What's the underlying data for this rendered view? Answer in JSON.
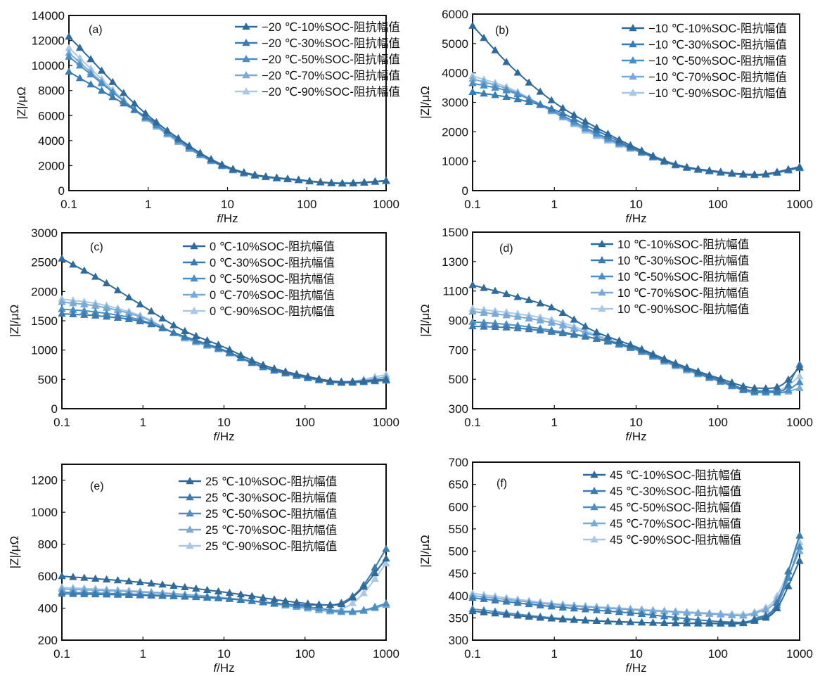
{
  "figure": {
    "description": "Impedance magnitude vs frequency at different temperatures and SOC levels",
    "colors": [
      "#2f6a9a",
      "#3b7bb0",
      "#4a8ec4",
      "#79a9d4",
      "#a9c8e6"
    ]
  },
  "chart_data": [
    {
      "type": "line",
      "panel": "(a)",
      "xlabel_italic": "f",
      "xlabel_unit": "/Hz",
      "ylabel": "|Z|/μΩ",
      "xscale": "log",
      "xlim": [
        0.1,
        1000
      ],
      "ylim": [
        0,
        14000
      ],
      "yticks": [
        0,
        2000,
        4000,
        6000,
        8000,
        10000,
        12000,
        14000
      ],
      "xticks": [
        "0.1",
        "1",
        "10",
        "100",
        "1000"
      ],
      "legend_position": "top-right",
      "x": [
        0.1,
        1,
        10,
        100,
        300,
        1000
      ],
      "series": [
        {
          "name": "−20  ℃-10%SOC-阻抗幅值",
          "values": [
            12300,
            6000,
            1900,
            800,
            600,
            800
          ]
        },
        {
          "name": "−20  ℃-30%SOC-阻抗幅值",
          "values": [
            9500,
            5800,
            1850,
            780,
            580,
            780
          ]
        },
        {
          "name": "−20  ℃-50%SOC-阻抗幅值",
          "values": [
            10700,
            5700,
            1800,
            770,
            570,
            770
          ]
        },
        {
          "name": "−20  ℃-70%SOC-阻抗幅值",
          "values": [
            11000,
            5600,
            1780,
            760,
            560,
            760
          ]
        },
        {
          "name": "−20  ℃-90%SOC-阻抗幅值",
          "values": [
            11400,
            5600,
            1780,
            760,
            560,
            800
          ]
        }
      ]
    },
    {
      "type": "line",
      "panel": "(b)",
      "xlabel_italic": "f",
      "xlabel_unit": "/Hz",
      "ylabel": "|Z|/μΩ",
      "xscale": "log",
      "xlim": [
        0.1,
        1000
      ],
      "ylim": [
        0,
        6000
      ],
      "yticks": [
        0,
        1000,
        2000,
        3000,
        4000,
        5000,
        6000
      ],
      "xticks": [
        "0.1",
        "1",
        "10",
        "100",
        "1000"
      ],
      "legend_position": "top-right",
      "x": [
        0.1,
        0.3,
        1,
        3,
        10,
        30,
        100,
        300,
        1000
      ],
      "series": [
        {
          "name": "−10  ℃-10%SOC-阻抗幅值",
          "values": [
            5600,
            4200,
            3000,
            2200,
            1450,
            900,
            650,
            550,
            800
          ]
        },
        {
          "name": "−10  ℃-30%SOC-阻抗幅值",
          "values": [
            3350,
            3150,
            2750,
            2100,
            1400,
            880,
            640,
            540,
            780
          ]
        },
        {
          "name": "−10  ℃-50%SOC-阻抗幅值",
          "values": [
            3650,
            3350,
            2700,
            2000,
            1380,
            870,
            630,
            530,
            770
          ]
        },
        {
          "name": "−10  ℃-70%SOC-阻抗幅值",
          "values": [
            3800,
            3400,
            2650,
            1950,
            1360,
            860,
            620,
            520,
            760
          ]
        },
        {
          "name": "−10  ℃-90%SOC-阻抗幅值",
          "values": [
            3900,
            3450,
            2650,
            1900,
            1350,
            860,
            620,
            530,
            820
          ]
        }
      ]
    },
    {
      "type": "line",
      "panel": "(c)",
      "xlabel_italic": "f",
      "xlabel_unit": "/Hz",
      "ylabel": "|Z|/μΩ",
      "xscale": "log",
      "xlim": [
        0.1,
        1000
      ],
      "ylim": [
        0,
        3000
      ],
      "yticks": [
        0,
        500,
        1000,
        1500,
        2000,
        2500,
        3000
      ],
      "xticks": [
        "0.1",
        "1",
        "10",
        "100",
        "1000"
      ],
      "legend_position": "top-right",
      "x": [
        0.1,
        0.3,
        1,
        3,
        10,
        30,
        100,
        300,
        1000
      ],
      "series": [
        {
          "name": "0  ℃-10%SOC-阻抗幅值",
          "values": [
            2560,
            2200,
            1750,
            1350,
            1050,
            750,
            560,
            460,
            500
          ]
        },
        {
          "name": "0  ℃-30%SOC-阻抗幅值",
          "values": [
            1620,
            1580,
            1480,
            1250,
            1000,
            720,
            540,
            440,
            490
          ]
        },
        {
          "name": "0  ℃-50%SOC-阻抗幅值",
          "values": [
            1700,
            1640,
            1500,
            1240,
            990,
            710,
            530,
            440,
            480
          ]
        },
        {
          "name": "0  ℃-70%SOC-阻抗幅值",
          "values": [
            1820,
            1740,
            1550,
            1230,
            980,
            710,
            530,
            450,
            540
          ]
        },
        {
          "name": "0  ℃-90%SOC-阻抗幅值",
          "values": [
            1870,
            1780,
            1570,
            1220,
            980,
            710,
            540,
            460,
            580
          ]
        }
      ]
    },
    {
      "type": "line",
      "panel": "(d)",
      "xlabel_italic": "f",
      "xlabel_unit": "/Hz",
      "ylabel": "|Z|/μΩ",
      "xscale": "log",
      "xlim": [
        0.1,
        1000
      ],
      "ylim": [
        300,
        1500
      ],
      "yticks": [
        300,
        500,
        700,
        900,
        1100,
        1300,
        1500
      ],
      "xticks": [
        "0.1",
        "1",
        "10",
        "100",
        "1000"
      ],
      "legend_position": "top-right",
      "x": [
        0.1,
        0.3,
        1,
        3,
        10,
        30,
        100,
        300,
        600,
        1000
      ],
      "series": [
        {
          "name": "10  ℃-10%SOC-阻抗幅值",
          "values": [
            1140,
            1070,
            980,
            830,
            720,
            610,
            510,
            440,
            460,
            580
          ]
        },
        {
          "name": "10  ℃-30%SOC-阻抗幅值",
          "values": [
            860,
            850,
            820,
            780,
            710,
            600,
            500,
            420,
            420,
            600
          ]
        },
        {
          "name": "10  ℃-50%SOC-阻抗幅值",
          "values": [
            890,
            870,
            830,
            780,
            700,
            600,
            490,
            410,
            410,
            480
          ]
        },
        {
          "name": "10  ℃-70%SOC-阻抗幅值",
          "values": [
            960,
            930,
            880,
            800,
            700,
            590,
            490,
            410,
            410,
            440
          ]
        },
        {
          "name": "10  ℃-90%SOC-阻抗幅值",
          "values": [
            980,
            950,
            900,
            810,
            700,
            590,
            490,
            420,
            430,
            520
          ]
        }
      ]
    },
    {
      "type": "line",
      "panel": "(e)",
      "xlabel_italic": "f",
      "xlabel_unit": "/Hz",
      "ylabel": "|Z|/μΩ",
      "xscale": "log",
      "xlim": [
        0.1,
        1000
      ],
      "ylim": [
        200,
        1300
      ],
      "yticks": [
        200,
        400,
        600,
        800,
        1000,
        1200
      ],
      "xticks": [
        "0.1",
        "1",
        "10",
        "100",
        "1000"
      ],
      "legend_position": "top-right",
      "x": [
        0.1,
        1,
        10,
        100,
        200,
        300,
        500,
        1000
      ],
      "series": [
        {
          "name": "25  ℃-10%SOC-阻抗幅值",
          "values": [
            600,
            560,
            500,
            430,
            420,
            430,
            520,
            710
          ]
        },
        {
          "name": "25  ℃-30%SOC-阻抗幅值",
          "values": [
            490,
            480,
            460,
            420,
            420,
            440,
            530,
            770
          ]
        },
        {
          "name": "25  ℃-50%SOC-阻抗幅值",
          "values": [
            500,
            485,
            460,
            410,
            390,
            380,
            385,
            430
          ]
        },
        {
          "name": "25  ℃-70%SOC-阻抗幅值",
          "values": [
            520,
            500,
            465,
            400,
            380,
            375,
            380,
            420
          ]
        },
        {
          "name": "25  ℃-90%SOC-阻抗幅值",
          "values": [
            530,
            505,
            465,
            405,
            385,
            400,
            480,
            680
          ]
        }
      ]
    },
    {
      "type": "line",
      "panel": "(f)",
      "xlabel_italic": "f",
      "xlabel_unit": "/Hz",
      "ylabel": "|Z|/μΩ",
      "xscale": "log",
      "xlim": [
        0.1,
        1000
      ],
      "ylim": [
        300,
        700
      ],
      "yticks": [
        300,
        350,
        400,
        450,
        500,
        550,
        600,
        650,
        700
      ],
      "xticks": [
        "0.1",
        "1",
        "10",
        "100",
        "1000"
      ],
      "legend_position": "top-right",
      "x": [
        0.1,
        1,
        10,
        100,
        200,
        300,
        500,
        1000
      ],
      "series": [
        {
          "name": "45  ℃-10%SOC-阻抗幅值",
          "values": [
            365,
            348,
            340,
            338,
            338,
            345,
            365,
            478
          ]
        },
        {
          "name": "45  ℃-30%SOC-阻抗幅值",
          "values": [
            395,
            375,
            360,
            342,
            340,
            350,
            375,
            535
          ]
        },
        {
          "name": "45  ℃-50%SOC-阻抗幅值",
          "values": [
            370,
            350,
            340,
            337,
            338,
            348,
            370,
            510
          ]
        },
        {
          "name": "45  ℃-70%SOC-阻抗幅值",
          "values": [
            400,
            380,
            368,
            358,
            355,
            362,
            385,
            500
          ]
        },
        {
          "name": "45  ℃-90%SOC-阻抗幅值",
          "values": [
            405,
            382,
            370,
            360,
            358,
            365,
            392,
            520
          ]
        }
      ]
    }
  ]
}
